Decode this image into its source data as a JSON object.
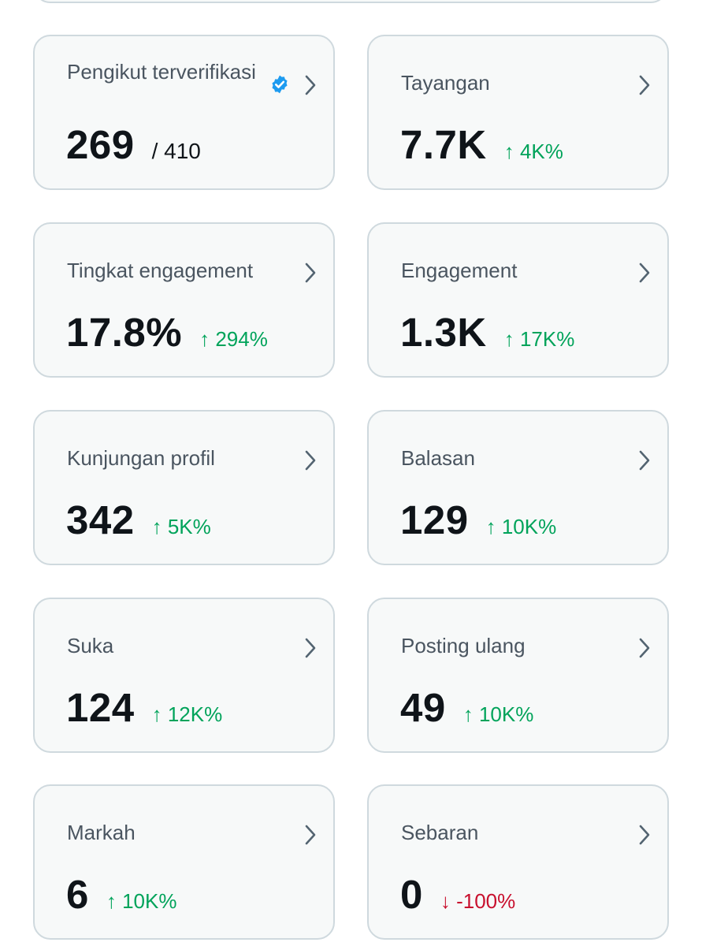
{
  "colors": {
    "card_bg": "#f7f9f9",
    "card_border": "#cfd9de",
    "label": "#4a5560",
    "value": "#0f1419",
    "up": "#00a35a",
    "down": "#c8102e",
    "verified": "#1d9bf0"
  },
  "cards": [
    {
      "label": "Pengikut terverifikasi",
      "value": "269",
      "of": "/ 410",
      "verified_icon": "verified-badge-icon",
      "chevron_icon": "chevron-right-icon"
    },
    {
      "label": "Tayangan",
      "value": "7.7K",
      "change": "↑ 4K%",
      "direction": "up",
      "chevron_icon": "chevron-right-icon"
    },
    {
      "label": "Tingkat engagement",
      "value": "17.8%",
      "change": "↑ 294%",
      "direction": "up",
      "chevron_icon": "chevron-right-icon"
    },
    {
      "label": "Engagement",
      "value": "1.3K",
      "change": "↑ 17K%",
      "direction": "up",
      "chevron_icon": "chevron-right-icon"
    },
    {
      "label": "Kunjungan profil",
      "value": "342",
      "change": "↑ 5K%",
      "direction": "up",
      "chevron_icon": "chevron-right-icon"
    },
    {
      "label": "Balasan",
      "value": "129",
      "change": "↑ 10K%",
      "direction": "up",
      "chevron_icon": "chevron-right-icon"
    },
    {
      "label": "Suka",
      "value": "124",
      "change": "↑ 12K%",
      "direction": "up",
      "chevron_icon": "chevron-right-icon"
    },
    {
      "label": "Posting ulang",
      "value": "49",
      "change": "↑ 10K%",
      "direction": "up",
      "chevron_icon": "chevron-right-icon"
    },
    {
      "label": "Markah",
      "value": "6",
      "change": "↑ 10K%",
      "direction": "up",
      "chevron_icon": "chevron-right-icon"
    },
    {
      "label": "Sebaran",
      "value": "0",
      "change": "↓ -100%",
      "direction": "down",
      "chevron_icon": "chevron-right-icon"
    }
  ]
}
